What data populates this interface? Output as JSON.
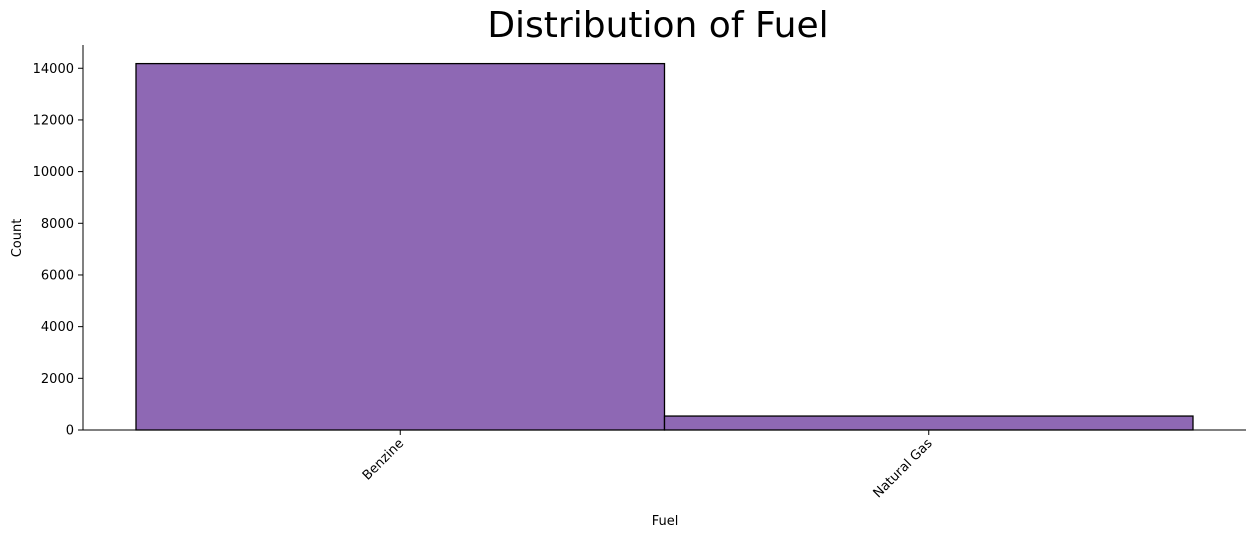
{
  "chart_data": {
    "type": "bar",
    "title": "Distribution of Fuel",
    "xlabel": "Fuel",
    "ylabel": "Count",
    "categories": [
      "Benzine",
      "Natural Gas"
    ],
    "values": [
      14180,
      540
    ],
    "ylim": [
      0,
      14900
    ],
    "yticks": [
      0,
      2000,
      4000,
      6000,
      8000,
      10000,
      12000,
      14000
    ],
    "ytick_labels": [
      "0",
      "2000",
      "4000",
      "6000",
      "8000",
      "10000",
      "12000",
      "14000"
    ],
    "x_tick_rotation": "45 degrees",
    "bar_color": "#8e68b4",
    "edge_color": "#000000",
    "grid": false,
    "legend": false
  }
}
